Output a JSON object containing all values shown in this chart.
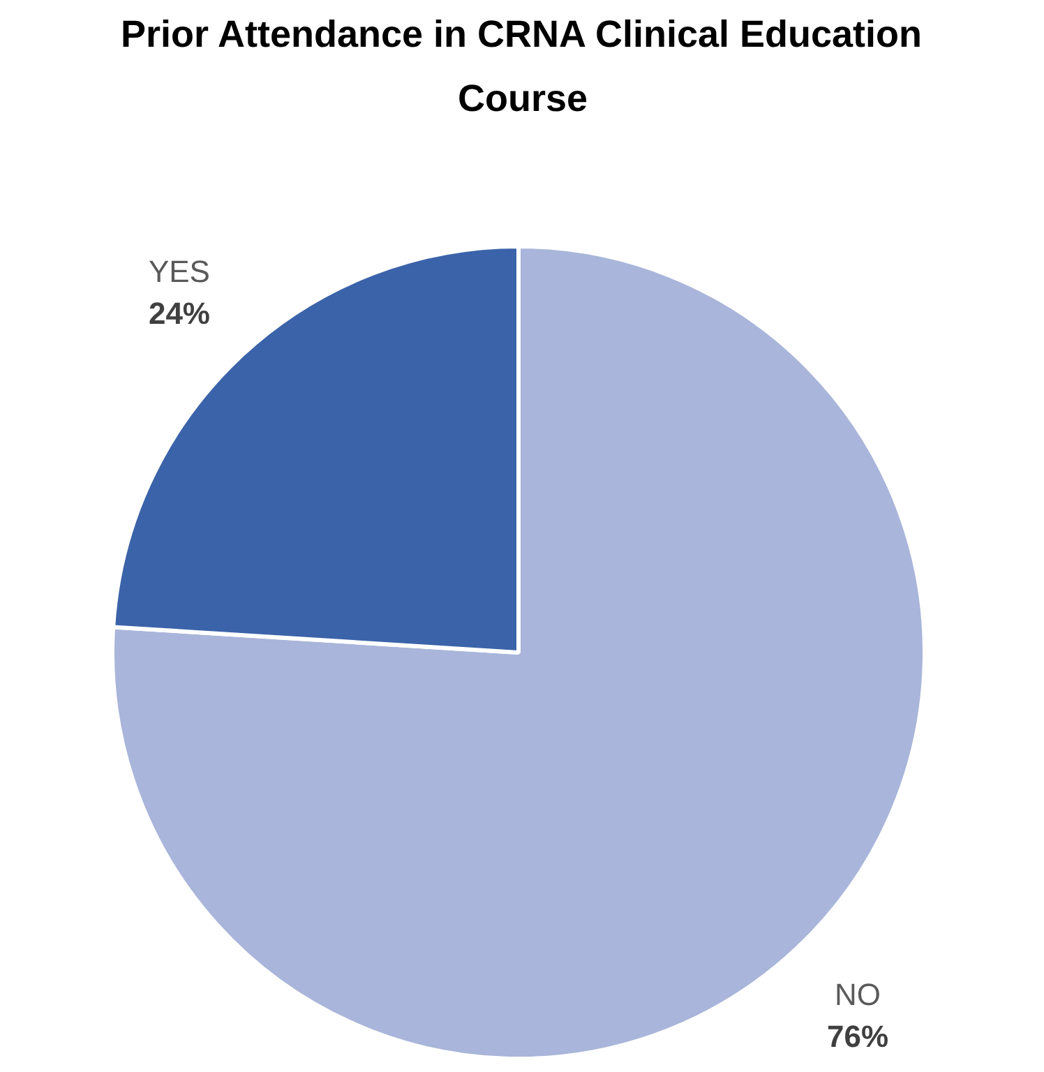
{
  "chart_data": {
    "type": "pie",
    "title": "Prior Attendance in CRNA Clinical Education Course",
    "categories": [
      "NO",
      "YES"
    ],
    "values": [
      76,
      24
    ],
    "colors": [
      "#a9b5da",
      "#3b63a9"
    ],
    "value_labels": [
      "76%",
      "24%"
    ]
  }
}
